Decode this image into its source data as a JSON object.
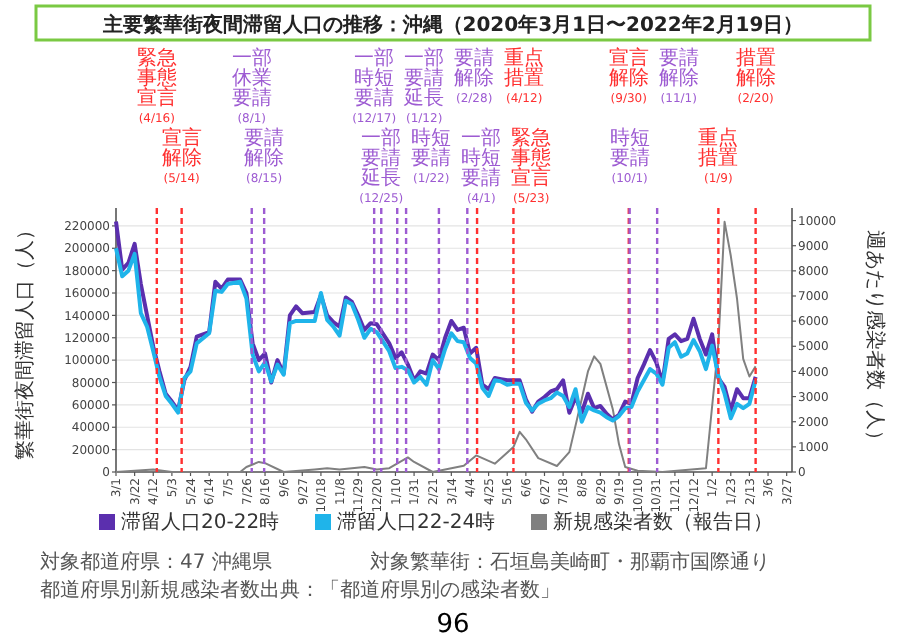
{
  "chart_data": {
    "type": "line",
    "title": "主要繁華街夜間滞留人口の推移：沖縄（2020年3月1日〜2022年2月19日）",
    "ylabel": "繁華街夜間滞留人口（人）",
    "y2label": "週あたり感染者数（人）",
    "x": [
      "2020-03-01",
      "2020-03-08",
      "2020-03-15",
      "2020-03-22",
      "2020-03-29",
      "2020-04-05",
      "2020-04-12",
      "2020-04-19",
      "2020-04-26",
      "2020-05-03",
      "2020-05-10",
      "2020-05-17",
      "2020-05-24",
      "2020-05-31",
      "2020-06-14",
      "2020-06-21",
      "2020-06-28",
      "2020-07-05",
      "2020-07-19",
      "2020-07-26",
      "2020-08-02",
      "2020-08-09",
      "2020-08-16",
      "2020-08-23",
      "2020-08-30",
      "2020-09-06",
      "2020-09-13",
      "2020-09-20",
      "2020-09-27",
      "2020-10-11",
      "2020-10-18",
      "2020-10-25",
      "2020-11-01",
      "2020-11-08",
      "2020-11-15",
      "2020-11-22",
      "2020-11-29",
      "2020-12-06",
      "2020-12-13",
      "2020-12-20",
      "2021-01-03",
      "2021-01-10",
      "2021-01-17",
      "2021-01-24",
      "2021-01-31",
      "2021-02-07",
      "2021-02-14",
      "2021-02-21",
      "2021-02-28",
      "2021-03-07",
      "2021-03-14",
      "2021-03-21",
      "2021-03-28",
      "2021-04-04",
      "2021-04-11",
      "2021-04-18",
      "2021-04-25",
      "2021-05-02",
      "2021-05-09",
      "2021-05-16",
      "2021-05-23",
      "2021-05-30",
      "2021-06-06",
      "2021-06-13",
      "2021-06-20",
      "2021-06-27",
      "2021-07-04",
      "2021-07-11",
      "2021-07-18",
      "2021-07-25",
      "2021-08-01",
      "2021-08-08",
      "2021-08-15",
      "2021-08-22",
      "2021-08-29",
      "2021-09-05",
      "2021-09-12",
      "2021-09-19",
      "2021-09-26",
      "2021-10-03",
      "2021-10-10",
      "2021-10-17",
      "2021-10-24",
      "2021-10-31",
      "2021-11-07",
      "2021-11-14",
      "2021-11-21",
      "2021-11-28",
      "2021-12-05",
      "2021-12-12",
      "2021-12-19",
      "2021-12-26",
      "2022-01-02",
      "2022-01-09",
      "2022-01-16",
      "2022-01-23",
      "2022-01-30",
      "2022-02-06",
      "2022-02-13",
      "2022-02-20"
    ],
    "series": [
      {
        "name": "滞留人口20-22時",
        "color": "#5b2fae",
        "values": [
          224000,
          181000,
          187000,
          204000,
          168000,
          140000,
          112000,
          90000,
          70000,
          63000,
          55000,
          82000,
          94000,
          121000,
          125000,
          170000,
          164000,
          172000,
          172000,
          160000,
          115000,
          100000,
          106000,
          80000,
          100000,
          88000,
          140000,
          148000,
          142000,
          143000,
          158000,
          140000,
          134000,
          130000,
          156000,
          152000,
          140000,
          127000,
          133000,
          132000,
          115000,
          102000,
          107000,
          96000,
          82000,
          90000,
          88000,
          105000,
          100000,
          120000,
          135000,
          127000,
          129000,
          106000,
          111000,
          78000,
          74000,
          84000,
          83000,
          82000,
          82000,
          82000,
          65000,
          54000,
          63000,
          67000,
          72000,
          74000,
          82000,
          53000,
          67000,
          53000,
          70000,
          57000,
          59000,
          52000,
          47000,
          51000,
          63000,
          61000,
          84000,
          96000,
          109000,
          98000,
          80000,
          119000,
          123000,
          117000,
          119000,
          137000,
          119000,
          105000,
          123000,
          84000,
          76000,
          55000,
          74000,
          66000,
          66000,
          85000
        ]
      },
      {
        "name": "滞留人口22-24時",
        "color": "#1fb4ea",
        "values": [
          200000,
          175000,
          180000,
          195000,
          142000,
          130000,
          108000,
          85000,
          68000,
          61000,
          53000,
          84000,
          90000,
          115000,
          124000,
          162000,
          161000,
          168000,
          170000,
          155000,
          105000,
          90000,
          98000,
          81000,
          96000,
          87000,
          133000,
          135000,
          135000,
          135000,
          160000,
          136000,
          130000,
          122000,
          153000,
          150000,
          136000,
          120000,
          128000,
          125000,
          108000,
          93000,
          94000,
          91000,
          80000,
          85000,
          78000,
          100000,
          92000,
          110000,
          124000,
          117000,
          116000,
          102000,
          97000,
          75000,
          68000,
          82000,
          81000,
          78000,
          79000,
          79000,
          62000,
          55000,
          61000,
          64000,
          66000,
          71000,
          68000,
          58000,
          74000,
          45000,
          58000,
          55000,
          53000,
          49000,
          46000,
          50000,
          57000,
          58000,
          72000,
          82000,
          92000,
          88000,
          78000,
          111000,
          116000,
          103000,
          106000,
          118000,
          108000,
          92000,
          113000,
          86000,
          70000,
          48000,
          61000,
          57000,
          61000,
          82000
        ]
      },
      {
        "name": "新規感染者数（報告日）",
        "color": "#808080",
        "axis": "y2",
        "x": [
          "2020-03-01",
          "2020-04-12",
          "2020-05-03",
          "2020-07-19",
          "2020-07-26",
          "2020-08-09",
          "2020-08-16",
          "2020-09-06",
          "2020-10-11",
          "2020-10-25",
          "2020-11-08",
          "2020-12-06",
          "2020-12-20",
          "2021-01-03",
          "2021-01-24",
          "2021-01-31",
          "2021-02-21",
          "2021-03-28",
          "2021-04-11",
          "2021-05-02",
          "2021-05-23",
          "2021-05-30",
          "2021-06-06",
          "2021-06-20",
          "2021-07-11",
          "2021-07-25",
          "2021-08-08",
          "2021-08-15",
          "2021-08-22",
          "2021-08-29",
          "2021-09-12",
          "2021-09-19",
          "2021-09-26",
          "2021-10-10",
          "2021-11-07",
          "2021-12-26",
          "2022-01-09",
          "2022-01-16",
          "2022-01-23",
          "2022-01-30",
          "2022-02-06",
          "2022-02-13",
          "2022-02-20"
        ],
        "values": [
          0,
          100,
          0,
          0,
          200,
          400,
          350,
          0,
          100,
          150,
          100,
          200,
          100,
          150,
          580,
          400,
          0,
          250,
          660,
          330,
          990,
          1600,
          1300,
          550,
          240,
          790,
          2900,
          4000,
          4600,
          4300,
          2500,
          1100,
          200,
          50,
          0,
          150,
          5100,
          9950,
          8600,
          6900,
          4500,
          3800,
          4200
        ]
      }
    ],
    "xlim": [
      "2020-03-01",
      "2022-04-02"
    ],
    "xticks": [
      {
        "value": "2020-03-01",
        "label": "3/1"
      },
      {
        "value": "2020-03-22",
        "label": "3/22"
      },
      {
        "value": "2020-04-12",
        "label": "4/12"
      },
      {
        "value": "2020-05-03",
        "label": "5/3"
      },
      {
        "value": "2020-05-24",
        "label": "5/24"
      },
      {
        "value": "2020-06-14",
        "label": "6/14"
      },
      {
        "value": "2020-07-05",
        "label": "7/5"
      },
      {
        "value": "2020-07-26",
        "label": "7/26"
      },
      {
        "value": "2020-08-16",
        "label": "8/16"
      },
      {
        "value": "2020-09-06",
        "label": "9/6"
      },
      {
        "value": "2020-09-27",
        "label": "9/27"
      },
      {
        "value": "2020-10-18",
        "label": "10/18"
      },
      {
        "value": "2020-11-08",
        "label": "11/8"
      },
      {
        "value": "2020-11-29",
        "label": "11/29"
      },
      {
        "value": "2020-12-20",
        "label": "12/20"
      },
      {
        "value": "2021-01-10",
        "label": "1/10"
      },
      {
        "value": "2021-01-31",
        "label": "1/31"
      },
      {
        "value": "2021-02-21",
        "label": "2/21"
      },
      {
        "value": "2021-03-14",
        "label": "3/14"
      },
      {
        "value": "2021-04-04",
        "label": "4/4"
      },
      {
        "value": "2021-04-25",
        "label": "4/25"
      },
      {
        "value": "2021-05-16",
        "label": "5/16"
      },
      {
        "value": "2021-06-06",
        "label": "6/6"
      },
      {
        "value": "2021-06-27",
        "label": "6/27"
      },
      {
        "value": "2021-07-18",
        "label": "7/18"
      },
      {
        "value": "2021-08-08",
        "label": "8/8"
      },
      {
        "value": "2021-08-29",
        "label": "8/29"
      },
      {
        "value": "2021-09-19",
        "label": "9/19"
      },
      {
        "value": "2021-10-10",
        "label": "10/10"
      },
      {
        "value": "2021-10-31",
        "label": "10/31"
      },
      {
        "value": "2021-11-21",
        "label": "11/21"
      },
      {
        "value": "2021-12-12",
        "label": "12/12"
      },
      {
        "value": "2022-01-02",
        "label": "1/2"
      },
      {
        "value": "2022-01-23",
        "label": "1/23"
      },
      {
        "value": "2022-02-13",
        "label": "2/13"
      },
      {
        "value": "2022-03-06",
        "label": "3/6"
      },
      {
        "value": "2022-03-27",
        "label": "3/27"
      }
    ],
    "ylim": [
      0,
      236000
    ],
    "yticks": [
      0,
      20000,
      40000,
      60000,
      80000,
      100000,
      120000,
      140000,
      160000,
      180000,
      200000,
      220000
    ],
    "y2lim": [
      0,
      10500
    ],
    "y2ticks": [
      0,
      1000,
      2000,
      3000,
      4000,
      5000,
      6000,
      7000,
      8000,
      9000,
      10000
    ],
    "ref_lines": [
      {
        "axis": "x",
        "value": "2020-04-16",
        "label": "緊急事態宣言(4/16)",
        "color": "#ff3030",
        "line_style": "dashed"
      },
      {
        "axis": "x",
        "value": "2020-05-14",
        "label": "宣言解除(5/14)",
        "color": "#ff3030",
        "line_style": "dashed"
      },
      {
        "axis": "x",
        "value": "2020-08-01",
        "label": "一部休業要請(8/1)",
        "color": "#9d5bd2",
        "line_style": "dashed"
      },
      {
        "axis": "x",
        "value": "2020-08-15",
        "label": "要請解除(8/15)",
        "color": "#9d5bd2",
        "line_style": "dashed"
      },
      {
        "axis": "x",
        "value": "2020-12-17",
        "label": "一部時短要請(12/17)",
        "color": "#9d5bd2",
        "line_style": "dashed"
      },
      {
        "axis": "x",
        "value": "2020-12-25",
        "label": "一部要請延長(12/25)",
        "color": "#9d5bd2",
        "line_style": "dashed"
      },
      {
        "axis": "x",
        "value": "2021-01-12",
        "label": "一部要請延長(1/12)",
        "color": "#9d5bd2",
        "line_style": "dashed"
      },
      {
        "axis": "x",
        "value": "2021-01-22",
        "label": "時短要請(1/22)",
        "color": "#9d5bd2",
        "line_style": "dashed"
      },
      {
        "axis": "x",
        "value": "2021-02-28",
        "label": "要請解除(2/28)",
        "color": "#9d5bd2",
        "line_style": "dashed"
      },
      {
        "axis": "x",
        "value": "2021-04-01",
        "label": "一部時短要請(4/1)",
        "color": "#9d5bd2",
        "line_style": "dashed"
      },
      {
        "axis": "x",
        "value": "2021-04-12",
        "label": "重点措置(4/12)",
        "color": "#ff3030",
        "line_style": "dashed"
      },
      {
        "axis": "x",
        "value": "2021-05-23",
        "label": "緊急事態宣言(5/23)",
        "color": "#ff3030",
        "line_style": "dashed"
      },
      {
        "axis": "x",
        "value": "2021-09-30",
        "label": "宣言解除(9/30)",
        "color": "#ff3030",
        "line_style": "dashed"
      },
      {
        "axis": "x",
        "value": "2021-10-01",
        "label": "時短要請(10/1)",
        "color": "#9d5bd2",
        "line_style": "dashed"
      },
      {
        "axis": "x",
        "value": "2021-11-01",
        "label": "要請解除(11/1)",
        "color": "#9d5bd2",
        "line_style": "dashed"
      },
      {
        "axis": "x",
        "value": "2022-01-09",
        "label": "重点措置(1/9)",
        "color": "#ff3030",
        "line_style": "dashed"
      },
      {
        "axis": "x",
        "value": "2022-02-20",
        "label": "措置解除(2/20)",
        "color": "#ff3030",
        "line_style": "dashed"
      }
    ],
    "grid": "y",
    "legend": "bottom",
    "annotations": [
      "対象都道府県：47 沖縄県",
      "対象繁華街：石垣島美崎町・那覇市国際通り",
      "都道府県別新規感染者数出典：「都道府県別の感染者数」",
      "96"
    ]
  }
}
